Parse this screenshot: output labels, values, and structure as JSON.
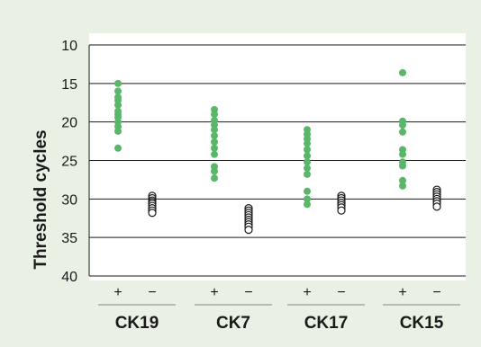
{
  "chart_data": {
    "type": "scatter",
    "ylabel": "Threshold cycles",
    "ylim": [
      10,
      40
    ],
    "y_inverted": true,
    "yticks": [
      10,
      15,
      20,
      25,
      30,
      35,
      40
    ],
    "grid": true,
    "background_color": "#e8f1e3",
    "plot_background_color": "#ffffff",
    "groups": [
      {
        "name": "CK19",
        "series": [
          {
            "sign": "+",
            "style": "filled",
            "color": "#5ab76a",
            "values": [
              15.0,
              16.0,
              16.8,
              17.2,
              17.8,
              18.6,
              19.0,
              19.4,
              20.0,
              20.6,
              21.2,
              23.4
            ]
          },
          {
            "sign": "−",
            "style": "open",
            "color": "#1a1a1a",
            "values": [
              29.6,
              29.9,
              30.2,
              30.4,
              30.6,
              30.9,
              31.2,
              31.5,
              31.8
            ]
          }
        ]
      },
      {
        "name": "CK7",
        "series": [
          {
            "sign": "+",
            "style": "filled",
            "color": "#5ab76a",
            "values": [
              18.4,
              19.0,
              19.8,
              20.4,
              21.0,
              21.8,
              22.6,
              23.4,
              24.2,
              25.8,
              26.4,
              27.3
            ]
          },
          {
            "sign": "−",
            "style": "open",
            "color": "#1a1a1a",
            "values": [
              31.2,
              31.5,
              31.8,
              32.1,
              32.4,
              32.7,
              33.0,
              33.3,
              33.6,
              34.0
            ]
          }
        ]
      },
      {
        "name": "CK17",
        "series": [
          {
            "sign": "+",
            "style": "filled",
            "color": "#5ab76a",
            "values": [
              21.0,
              21.6,
              22.2,
              22.8,
              23.6,
              24.4,
              25.2,
              26.0,
              26.8,
              29.0,
              30.0,
              30.7
            ]
          },
          {
            "sign": "−",
            "style": "open",
            "color": "#1a1a1a",
            "values": [
              29.6,
              29.9,
              30.2,
              30.5,
              30.8,
              31.1,
              31.5
            ]
          }
        ]
      },
      {
        "name": "CK15",
        "series": [
          {
            "sign": "+",
            "style": "filled",
            "color": "#5ab76a",
            "values": [
              13.6,
              19.9,
              20.4,
              21.3,
              23.6,
              24.2,
              25.2,
              25.7,
              27.6,
              28.3
            ]
          },
          {
            "sign": "−",
            "style": "open",
            "color": "#1a1a1a",
            "values": [
              28.8,
              29.1,
              29.4,
              29.7,
              30.0,
              30.3,
              30.6,
              31.0
            ]
          }
        ]
      }
    ]
  }
}
